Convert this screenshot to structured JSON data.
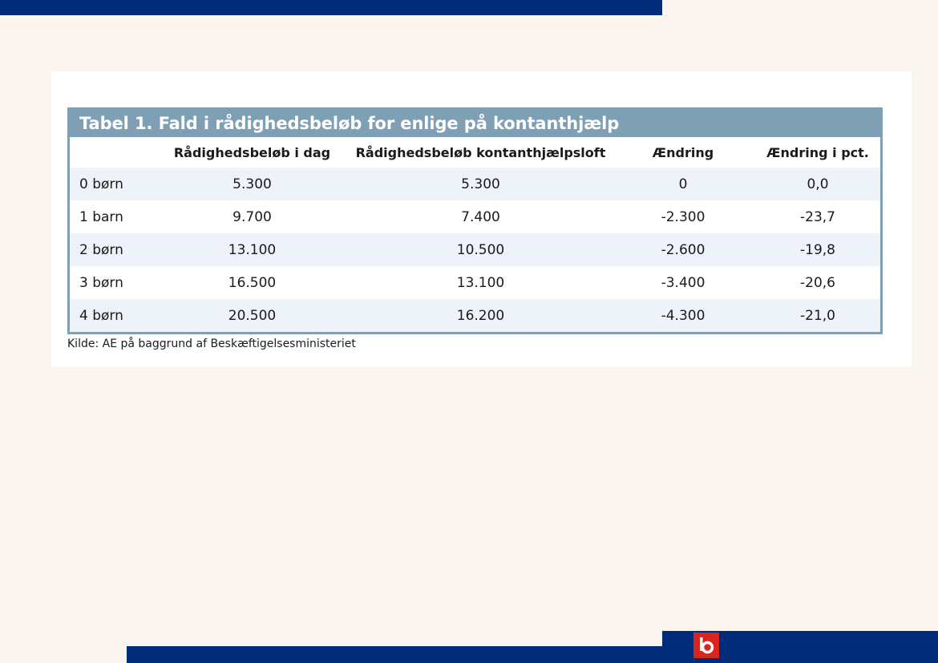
{
  "colors": {
    "brand_navy": "#002b78",
    "table_header": "#7f9fb4",
    "row_band": "#eef3fa",
    "logo_red": "#d8261e",
    "background": "#faf5ee"
  },
  "table": {
    "title": "Tabel 1. Fald i rådighedsbeløb for enlige på kontanthjælp",
    "columns": [
      "",
      "Rådighedsbeløb i dag",
      "Rådighedsbeløb kontanthjælpsloft",
      "Ændring",
      "Ændring i pct."
    ],
    "rows": [
      [
        "0 børn",
        "5.300",
        "5.300",
        "0",
        "0,0"
      ],
      [
        "1 barn",
        "9.700",
        "7.400",
        "-2.300",
        "-23,7"
      ],
      [
        "2 børn",
        "13.100",
        "10.500",
        "-2.600",
        "-19,8"
      ],
      [
        "3 børn",
        "16.500",
        "13.100",
        "-3.400",
        "-20,6"
      ],
      [
        "4 børn",
        "20.500",
        "16.200",
        "-4.300",
        "-21,0"
      ]
    ],
    "source": "Kilde: AE på baggrund af Beskæftigelsesministeriet"
  },
  "logo": {
    "icon": "lo-logo-icon"
  }
}
